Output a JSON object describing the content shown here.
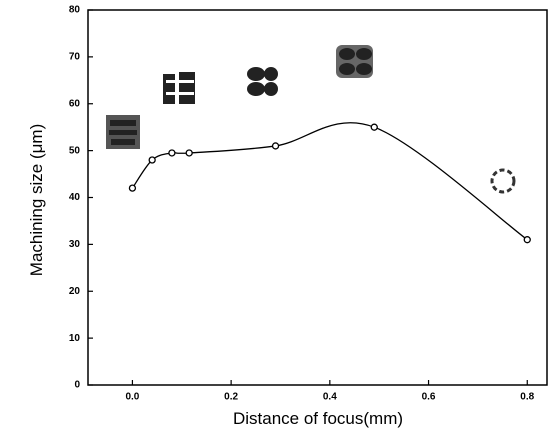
{
  "chart_data": {
    "type": "line",
    "x_label": "Distance of focus(mm)",
    "y_label": "Machining size (μm)",
    "x": [
      0.0,
      0.04,
      0.08,
      0.115,
      0.29,
      0.49,
      0.8
    ],
    "values": [
      42,
      48,
      49.5,
      49.5,
      51,
      55,
      31
    ],
    "color": "#000000",
    "xlim": [
      -0.09,
      0.84
    ],
    "ylim": [
      0,
      80
    ],
    "xticks": [
      {
        "value": 0,
        "label": "0.0"
      },
      {
        "value": 0.2,
        "label": "0.2"
      },
      {
        "value": 0.4,
        "label": "0.4"
      },
      {
        "value": 0.6,
        "label": "0.6"
      },
      {
        "value": 0.8,
        "label": "0.8"
      }
    ],
    "yticks": [
      0,
      10,
      20,
      30,
      40,
      50,
      60,
      70,
      80
    ]
  }
}
